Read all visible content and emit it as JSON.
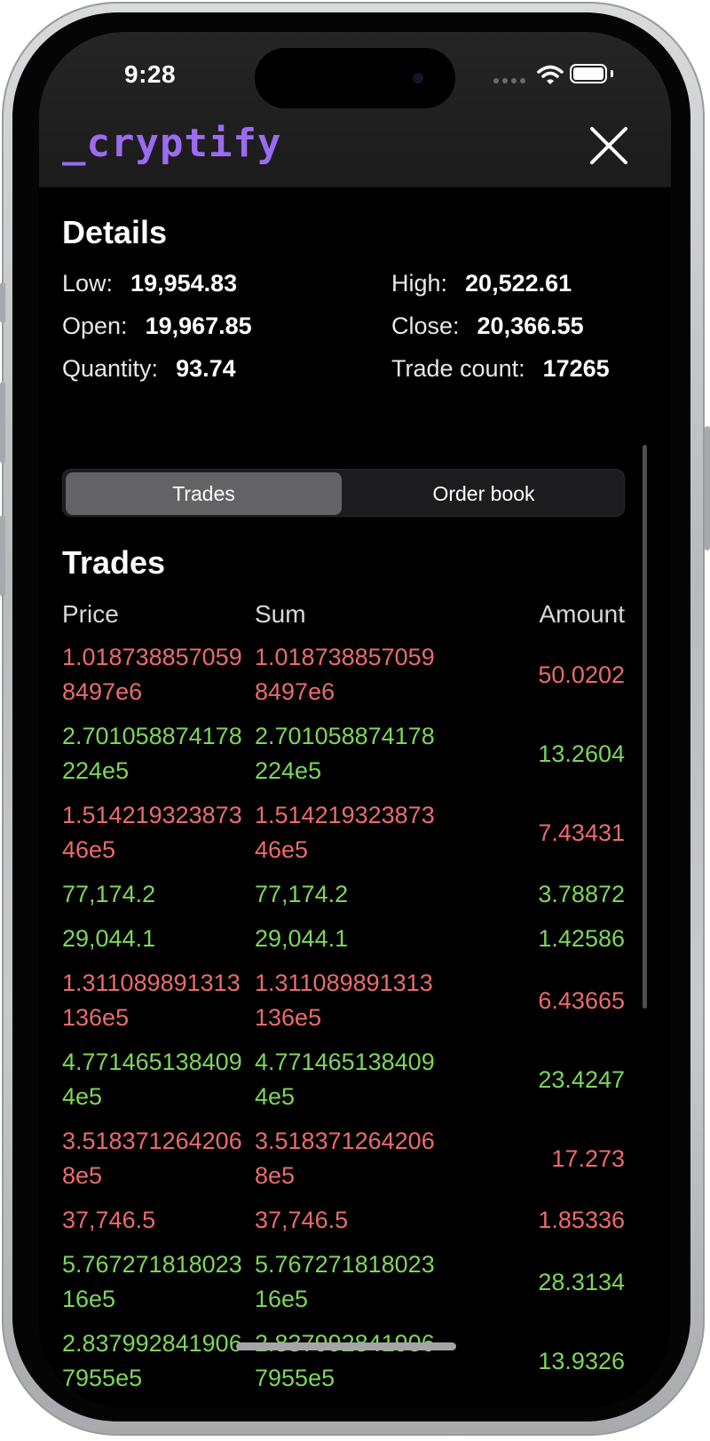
{
  "status_bar": {
    "time": "9:28"
  },
  "header": {
    "logo": "_cryptify"
  },
  "details": {
    "title": "Details",
    "low_label": "Low:",
    "low_value": "19,954.83",
    "high_label": "High:",
    "high_value": "20,522.61",
    "open_label": "Open:",
    "open_value": "19,967.85",
    "close_label": "Close:",
    "close_value": "20,366.55",
    "quantity_label": "Quantity:",
    "quantity_value": "93.74",
    "trade_count_label": "Trade count:",
    "trade_count_value": "17265"
  },
  "tabs": {
    "trades": "Trades",
    "order_book": "Order book"
  },
  "trades": {
    "title": "Trades",
    "columns": {
      "price": "Price",
      "sum": "Sum",
      "amount": "Amount"
    },
    "rows": [
      {
        "price": "1.0187388570598497e6",
        "sum": "1.0187388570598497e6",
        "amount": "50.0202",
        "color": "red"
      },
      {
        "price": "2.701058874178224e5",
        "sum": "2.701058874178224e5",
        "amount": "13.2604",
        "color": "green"
      },
      {
        "price": "1.51421932387346e5",
        "sum": "1.51421932387346e5",
        "amount": "7.43431",
        "color": "red"
      },
      {
        "price": "77,174.2",
        "sum": "77,174.2",
        "amount": "3.78872",
        "color": "green"
      },
      {
        "price": "29,044.1",
        "sum": "29,044.1",
        "amount": "1.42586",
        "color": "green"
      },
      {
        "price": "1.311089891313136e5",
        "sum": "1.311089891313136e5",
        "amount": "6.43665",
        "color": "red"
      },
      {
        "price": "4.7714651384094e5",
        "sum": "4.7714651384094e5",
        "amount": "23.4247",
        "color": "green"
      },
      {
        "price": "3.5183712642068e5",
        "sum": "3.5183712642068e5",
        "amount": "17.273",
        "color": "red"
      },
      {
        "price": "37,746.5",
        "sum": "37,746.5",
        "amount": "1.85336",
        "color": "red"
      },
      {
        "price": "5.76727181802316e5",
        "sum": "5.76727181802316e5",
        "amount": "28.3134",
        "color": "green"
      },
      {
        "price": "2.8379928419067955e5",
        "sum": "2.8379928419067955e5",
        "amount": "13.9326",
        "color": "green"
      }
    ]
  },
  "colors": {
    "accent": "#9b6bf2",
    "sell": "#ec6b6b",
    "buy": "#7dd65a"
  }
}
